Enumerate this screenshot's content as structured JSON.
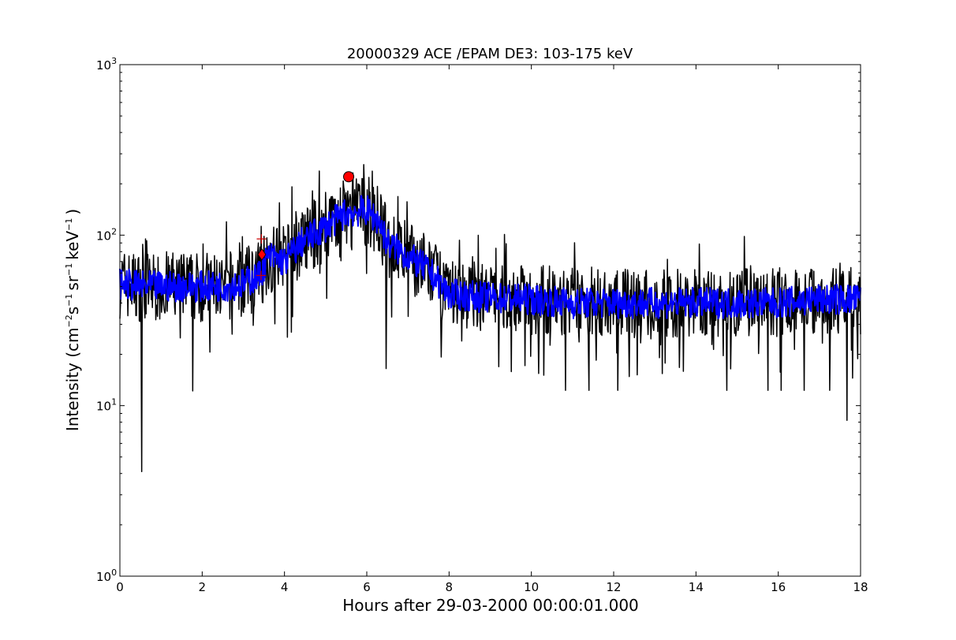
{
  "chart_data": {
    "type": "line",
    "title": "20000329 ACE /EPAM DE3: 103-175 keV",
    "xlabel": "Hours after 29-03-2000 00:00:01.000",
    "ylabel": {
      "prefix": "Intensity (cm",
      "exp1": "−2",
      "part2": "s",
      "exp2": "−1",
      "part3": "sr",
      "exp3": "−1",
      "part4": "keV",
      "exp4": "−1",
      "suffix": ")"
    },
    "xlim": [
      0,
      18
    ],
    "ylim": [
      1,
      1000
    ],
    "yscale": "log",
    "grid": false,
    "legend": "none",
    "x_ticks": [
      0,
      2,
      4,
      6,
      8,
      10,
      12,
      14,
      16,
      18
    ],
    "y_ticks": [
      {
        "value": 1,
        "base": "10",
        "exp": "0"
      },
      {
        "value": 10,
        "base": "10",
        "exp": "1"
      },
      {
        "value": 100,
        "base": "10",
        "exp": "2"
      },
      {
        "value": 1000,
        "base": "10",
        "exp": "3"
      }
    ],
    "series": [
      {
        "color": "#000000",
        "style": "raw",
        "profile": [
          [
            0,
            52
          ],
          [
            0.5,
            50
          ],
          [
            1,
            50
          ],
          [
            1.5,
            50
          ],
          [
            2,
            50
          ],
          [
            2.5,
            50
          ],
          [
            3,
            52
          ],
          [
            3.4,
            58
          ],
          [
            3.6,
            75
          ],
          [
            4.0,
            70
          ],
          [
            4.4,
            90
          ],
          [
            5.0,
            112
          ],
          [
            5.5,
            135
          ],
          [
            6.0,
            140
          ],
          [
            6.3,
            120
          ],
          [
            6.5,
            90
          ],
          [
            7.0,
            75
          ],
          [
            7.5,
            62
          ],
          [
            8.0,
            45
          ],
          [
            9,
            43
          ],
          [
            10,
            42
          ],
          [
            11,
            40
          ],
          [
            12,
            40
          ],
          [
            13,
            40
          ],
          [
            14,
            40
          ],
          [
            15,
            40
          ],
          [
            16,
            40
          ],
          [
            17,
            42
          ],
          [
            18,
            42
          ]
        ],
        "spikes_low": [
          [
            0.53,
            4.1
          ],
          [
            1.77,
            12.2
          ],
          [
            6.47,
            16.5
          ],
          [
            10.83,
            12.3
          ],
          [
            11.4,
            12.3
          ],
          [
            12.1,
            12.3
          ],
          [
            14.75,
            12.3
          ],
          [
            15.75,
            12.3
          ],
          [
            16.07,
            12.3
          ],
          [
            16.63,
            12.3
          ],
          [
            17.25,
            12.3
          ],
          [
            17.67,
            8.2
          ]
        ]
      },
      {
        "color": "#0000ff",
        "style": "smoothed",
        "profile": [
          [
            0,
            52
          ],
          [
            0.5,
            50
          ],
          [
            1,
            50
          ],
          [
            1.5,
            50
          ],
          [
            2,
            50
          ],
          [
            2.5,
            50
          ],
          [
            3,
            52
          ],
          [
            3.4,
            58
          ],
          [
            3.6,
            75
          ],
          [
            4.0,
            70
          ],
          [
            4.4,
            90
          ],
          [
            5.0,
            112
          ],
          [
            5.5,
            135
          ],
          [
            6.0,
            140
          ],
          [
            6.3,
            120
          ],
          [
            6.5,
            90
          ],
          [
            7.0,
            75
          ],
          [
            7.5,
            62
          ],
          [
            8.0,
            45
          ],
          [
            9,
            43
          ],
          [
            10,
            42
          ],
          [
            11,
            40
          ],
          [
            12,
            40
          ],
          [
            13,
            40
          ],
          [
            14,
            40
          ],
          [
            15,
            40
          ],
          [
            16,
            40
          ],
          [
            17,
            42
          ],
          [
            18,
            42
          ]
        ]
      }
    ],
    "markers": [
      {
        "shape": "circle",
        "x": 5.56,
        "y": 220,
        "color": "#ff0000"
      },
      {
        "shape": "diamond",
        "x": 3.45,
        "y": 77,
        "color": "#ff0000"
      },
      {
        "shape": "plus",
        "x": 3.44,
        "y": 95,
        "color": "#cc0000"
      },
      {
        "shape": "plus",
        "x": 3.43,
        "y": 58,
        "color": "#cc0000"
      }
    ]
  }
}
